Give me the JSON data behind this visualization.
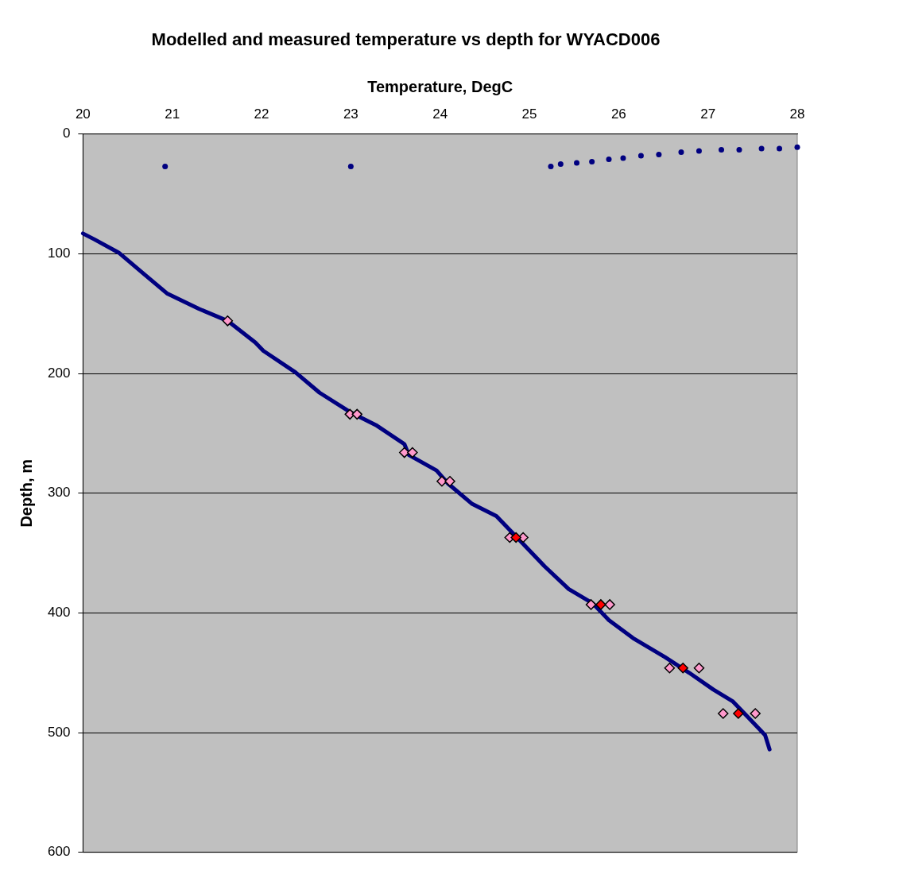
{
  "chart_data": {
    "type": "scatter",
    "title": "Modelled and measured temperature vs depth for WYACD006",
    "xlabel": "Temperature, DegC",
    "ylabel": "Depth, m",
    "xlim": [
      20,
      28
    ],
    "xticks": [
      20,
      21,
      22,
      23,
      24,
      25,
      26,
      27,
      28
    ],
    "ylim": [
      600,
      0
    ],
    "yticks": [
      0,
      100,
      200,
      300,
      400,
      500,
      600
    ],
    "grid": "y",
    "legend": false,
    "series": [
      {
        "type": "line",
        "color": "#000080",
        "marker": "none",
        "x": [
          20,
          20.13,
          20.4,
          20.67,
          20.94,
          21.3,
          21.62,
          21.93,
          22.02,
          22.38,
          22.65,
          23.01,
          23.28,
          23.6,
          23.65,
          23.96,
          24.09,
          24.36,
          24.63,
          24.9,
          25.17,
          25.44,
          25.71,
          25.89,
          26.16,
          26.52,
          26.79,
          27.06,
          27.28,
          27.46,
          27.64,
          27.69
        ],
        "values": [
          83,
          88,
          99,
          116,
          133,
          146,
          156,
          174,
          181,
          199,
          216,
          233,
          243,
          259,
          268,
          281,
          292,
          309,
          319,
          340,
          361,
          380,
          392,
          406,
          421,
          437,
          450,
          464,
          474,
          488,
          502,
          514
        ]
      },
      {
        "color": "#000080",
        "marker": "circle",
        "x": [
          20.92,
          23.0,
          25.24,
          25.35,
          25.53,
          25.7,
          25.89,
          26.05,
          26.25,
          26.45,
          26.7,
          26.9,
          27.15,
          27.35,
          27.6,
          27.8,
          28
        ],
        "values": [
          27,
          27,
          27,
          25,
          24,
          23,
          21,
          20,
          18,
          17,
          15,
          14,
          13,
          13,
          12,
          12,
          11
        ]
      },
      {
        "color": "#ff99cc",
        "marker": "diamond",
        "x": [
          21.62,
          22.99,
          23.07,
          23.6,
          23.69,
          24.02,
          24.11,
          24.78,
          24.93,
          25.69,
          25.9,
          26.57,
          26.9,
          27.17,
          27.53
        ],
        "values": [
          156,
          234,
          234,
          266,
          266,
          290,
          290,
          337,
          337,
          393,
          393,
          446,
          446,
          484,
          484
        ]
      },
      {
        "color": "#ff0000",
        "marker": "diamond",
        "x": [
          24.85,
          25.8,
          26.72,
          27.34
        ],
        "values": [
          337,
          393,
          446,
          484
        ]
      }
    ]
  }
}
